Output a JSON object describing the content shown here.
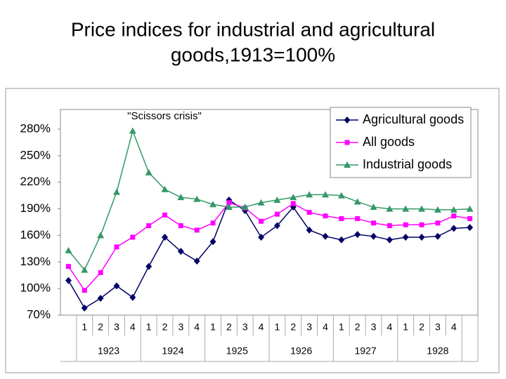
{
  "chart_data": {
    "type": "line",
    "title": [
      "Price indices for industrial and agricultural",
      "goods,1913=100%"
    ],
    "annotation": "\"Scissors crisis\"",
    "categories": [
      null,
      "1",
      "2",
      "3",
      "4",
      "1",
      "2",
      "3",
      "4",
      "1",
      "2",
      "3",
      "4",
      "1",
      "2",
      "3",
      "4",
      "1",
      "2",
      "3",
      "4",
      "1",
      "2",
      "3",
      "4",
      null
    ],
    "category_groups": [
      "1923",
      "1924",
      "1925",
      "1926",
      "1927",
      "1928"
    ],
    "series": [
      {
        "name": "Agricultural goods",
        "color": "#000066",
        "marker": "diamond",
        "values": [
          109,
          78,
          89,
          103,
          90,
          125,
          158,
          142,
          131,
          153,
          200,
          188,
          158,
          171,
          192,
          166,
          159,
          155,
          161,
          159,
          155,
          158,
          158,
          159,
          168,
          169
        ]
      },
      {
        "name": "All goods",
        "color": "#ff00ff",
        "marker": "square",
        "values": [
          125,
          98,
          118,
          147,
          158,
          171,
          183,
          171,
          166,
          174,
          197,
          191,
          176,
          184,
          196,
          186,
          182,
          179,
          179,
          174,
          171,
          172,
          172,
          174,
          182,
          179
        ]
      },
      {
        "name": "Industrial goods",
        "color": "#339966",
        "marker": "triangle",
        "values": [
          143,
          121,
          160,
          209,
          278,
          231,
          212,
          203,
          201,
          195,
          192,
          192,
          197,
          200,
          203,
          206,
          206,
          205,
          198,
          192,
          190,
          190,
          190,
          189,
          189,
          190
        ]
      }
    ],
    "ylim": [
      70,
      280
    ],
    "yticks": [
      {
        "value": 70,
        "label": "70%"
      },
      {
        "value": 100,
        "label": "100%"
      },
      {
        "value": 130,
        "label": "130%"
      },
      {
        "value": 160,
        "label": "160%"
      },
      {
        "value": 190,
        "label": "190%"
      },
      {
        "value": 220,
        "label": "220%"
      },
      {
        "value": 250,
        "label": "250%"
      },
      {
        "value": 280,
        "label": "280%"
      }
    ],
    "legend": "top-right"
  }
}
